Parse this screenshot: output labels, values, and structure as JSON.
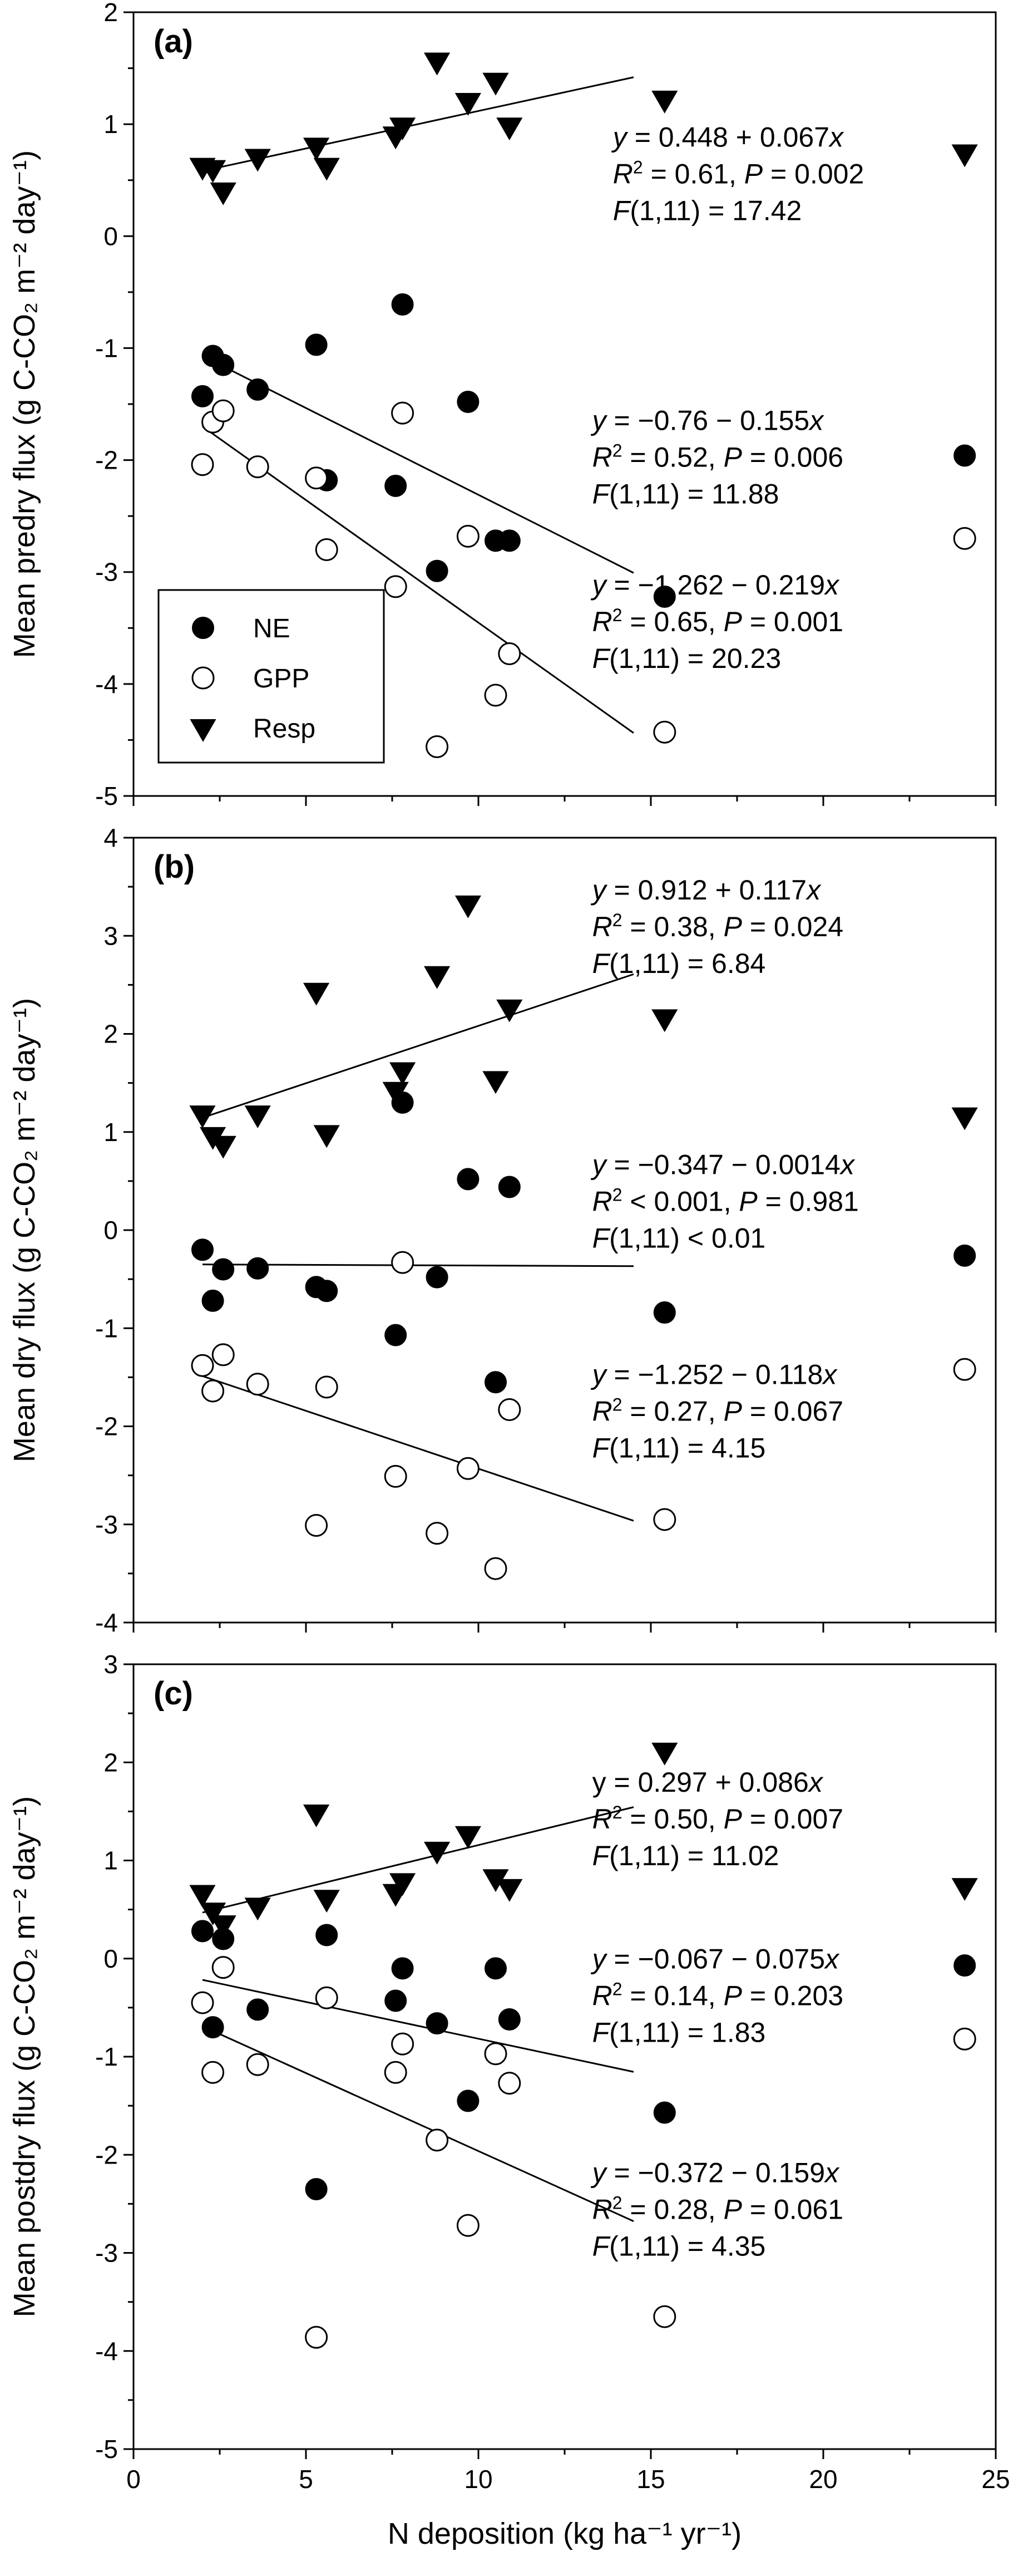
{
  "chart_data": [
    {
      "type": "scatter",
      "panel_label": "(a)",
      "ylabel": "Mean predry flux (g C-CO₂ m⁻² day⁻¹)",
      "xlim": [
        0,
        25
      ],
      "ylim": [
        -5,
        2
      ],
      "xticks": [
        0,
        5,
        10,
        15,
        20,
        25
      ],
      "yticks": [
        -5,
        -4,
        -3,
        -2,
        -1,
        0,
        1,
        2
      ],
      "grid": false,
      "legend": {
        "placement": "bottom-left",
        "entries": [
          {
            "label": "NE",
            "marker": "filled-circle"
          },
          {
            "label": "GPP",
            "marker": "open-circle"
          },
          {
            "label": "Resp",
            "marker": "filled-triangle-down"
          }
        ]
      },
      "series": [
        {
          "name": "NE",
          "marker": "filled-circle",
          "x": [
            2.0,
            2.3,
            2.6,
            3.6,
            5.3,
            5.6,
            7.6,
            7.8,
            8.8,
            9.7,
            10.5,
            10.9,
            15.4,
            24.1
          ],
          "y": [
            -1.43,
            -1.07,
            -1.15,
            -1.37,
            -0.97,
            -2.18,
            -2.23,
            -0.61,
            -2.99,
            -1.48,
            -2.72,
            -2.72,
            -3.22,
            -1.96
          ],
          "fit": {
            "x0": 2.0,
            "x1": 14.5,
            "intercept": -0.76,
            "slope": -0.155
          }
        },
        {
          "name": "GPP",
          "marker": "open-circle",
          "x": [
            2.0,
            2.3,
            2.6,
            3.6,
            5.3,
            5.6,
            7.6,
            7.8,
            8.8,
            9.7,
            10.5,
            10.9,
            15.4,
            24.1
          ],
          "y": [
            -2.04,
            -1.66,
            -1.56,
            -2.06,
            -2.16,
            -2.8,
            -3.13,
            -1.58,
            -4.56,
            -2.68,
            -4.1,
            -3.73,
            -4.43,
            -2.7
          ],
          "fit": {
            "x0": 2.0,
            "x1": 14.5,
            "intercept": -1.262,
            "slope": -0.219
          }
        },
        {
          "name": "Resp",
          "marker": "filled-triangle-down",
          "x": [
            2.0,
            2.3,
            2.6,
            3.6,
            5.3,
            5.6,
            7.6,
            7.8,
            8.8,
            9.7,
            10.5,
            10.9,
            15.4,
            24.1
          ],
          "y": [
            0.62,
            0.6,
            0.4,
            0.7,
            0.8,
            0.62,
            0.9,
            0.98,
            1.56,
            1.2,
            1.38,
            0.98,
            1.22,
            0.74
          ],
          "fit": {
            "x0": 2.0,
            "x1": 14.5,
            "intercept": 0.448,
            "slope": 0.067
          }
        }
      ],
      "annotations": [
        {
          "line1_var": "y",
          "line1_rest": " = 0.448 + 0.067",
          "line1_suffix": "x",
          "r2": " = 0.61, ",
          "p_label": "P",
          "p_value": " = 0.002",
          "f_label": "F",
          "f_value": "(1,11) = 17.42",
          "x": 13.9,
          "y": 0.8
        },
        {
          "line1_var": "y",
          "line1_rest": " = −0.76 − 0.155",
          "line1_suffix": "x",
          "r2": " = 0.52, ",
          "p_label": "P",
          "p_value": " = 0.006",
          "f_label": "F",
          "f_value": "(1,11) = 11.88",
          "x": 13.3,
          "y": -1.73
        },
        {
          "line1_var": "y",
          "line1_rest": " = −1.262 − 0.219",
          "line1_suffix": "x",
          "r2": " = 0.65, ",
          "p_label": "P",
          "p_value": " = 0.001",
          "f_label": "F",
          "f_value": "(1,11) = 20.23",
          "x": 13.3,
          "y": -3.2
        }
      ]
    },
    {
      "type": "scatter",
      "panel_label": "(b)",
      "ylabel": "Mean dry flux (g C-CO₂ m⁻² day⁻¹)",
      "xlim": [
        0,
        25
      ],
      "ylim": [
        -4,
        4
      ],
      "xticks": [
        0,
        5,
        10,
        15,
        20,
        25
      ],
      "yticks": [
        -4,
        -3,
        -2,
        -1,
        0,
        1,
        2,
        3,
        4
      ],
      "grid": false,
      "series": [
        {
          "name": "NE",
          "marker": "filled-circle",
          "x": [
            2.0,
            2.3,
            2.6,
            3.6,
            5.3,
            5.6,
            7.6,
            7.8,
            8.8,
            9.7,
            10.5,
            10.9,
            15.4,
            24.1
          ],
          "y": [
            -0.2,
            -0.72,
            -0.4,
            -0.39,
            -0.58,
            -0.62,
            -1.07,
            1.3,
            -0.48,
            0.52,
            -1.55,
            0.44,
            -0.84,
            -0.26
          ],
          "fit": {
            "x0": 2.0,
            "x1": 14.5,
            "intercept": -0.347,
            "slope": -0.0014
          }
        },
        {
          "name": "GPP",
          "marker": "open-circle",
          "x": [
            2.0,
            2.3,
            2.6,
            3.6,
            5.3,
            5.6,
            7.6,
            7.8,
            8.8,
            9.7,
            10.5,
            10.9,
            15.4,
            24.1
          ],
          "y": [
            -1.38,
            -1.64,
            -1.27,
            -1.57,
            -3.01,
            -1.6,
            -2.51,
            -0.33,
            -3.09,
            -2.43,
            -3.45,
            -1.83,
            -2.95,
            -1.42
          ],
          "fit": {
            "x0": 2.0,
            "x1": 14.5,
            "intercept": -1.252,
            "slope": -0.118
          }
        },
        {
          "name": "Resp",
          "marker": "filled-triangle-down",
          "x": [
            2.0,
            2.3,
            2.6,
            3.6,
            5.3,
            5.6,
            7.6,
            7.8,
            8.8,
            9.7,
            10.5,
            10.9,
            15.4,
            24.1
          ],
          "y": [
            1.18,
            0.96,
            0.87,
            1.18,
            2.43,
            0.98,
            1.42,
            1.62,
            2.6,
            3.32,
            1.53,
            2.26,
            2.16,
            1.16
          ],
          "fit": {
            "x0": 2.0,
            "x1": 14.5,
            "intercept": 0.912,
            "slope": 0.117
          }
        }
      ],
      "annotations": [
        {
          "line1_var": "y",
          "line1_rest": " = 0.912 + 0.117",
          "line1_suffix": "x",
          "r2": " = 0.38, ",
          "p_label": "P",
          "p_value": " = 0.024",
          "f_label": "F",
          "f_value": "(1,11) = 6.84",
          "x": 13.3,
          "y": 3.37
        },
        {
          "line1_var": "y",
          "line1_rest": " = −0.347 − 0.0014",
          "line1_suffix": "x",
          "r2": " < 0.001, ",
          "p_label": "P",
          "p_value": " = 0.981",
          "f_label": "F",
          "f_value": "(1,11) < 0.01",
          "x": 13.3,
          "y": 0.57
        },
        {
          "line1_var": "y",
          "line1_rest": " = −1.252 − 0.118",
          "line1_suffix": "x",
          "r2": " = 0.27, ",
          "p_label": "P",
          "p_value": " = 0.067",
          "f_label": "F",
          "f_value": "(1,11) = 4.15",
          "x": 13.3,
          "y": -1.57
        }
      ]
    },
    {
      "type": "scatter",
      "panel_label": "(c)",
      "ylabel": "Mean postdry flux (g C-CO₂ m⁻² day⁻¹)",
      "xlabel": "N deposition (kg ha⁻¹ yr⁻¹)",
      "xlim": [
        0,
        25
      ],
      "ylim": [
        -5,
        3
      ],
      "xticks": [
        0,
        5,
        10,
        15,
        20,
        25
      ],
      "yticks": [
        -5,
        -4,
        -3,
        -2,
        -1,
        0,
        1,
        2,
        3
      ],
      "grid": false,
      "series": [
        {
          "name": "NE",
          "marker": "filled-circle",
          "x": [
            2.0,
            2.3,
            2.6,
            3.6,
            5.3,
            5.6,
            7.6,
            7.8,
            8.8,
            9.7,
            10.5,
            10.9,
            15.4,
            24.1
          ],
          "y": [
            0.28,
            -0.7,
            0.2,
            -0.52,
            -2.35,
            0.24,
            -0.43,
            -0.1,
            -0.66,
            -1.45,
            -0.1,
            -0.62,
            -1.57,
            -0.07
          ],
          "fit": {
            "x0": 2.0,
            "x1": 14.5,
            "intercept": -0.067,
            "slope": -0.075
          }
        },
        {
          "name": "GPP",
          "marker": "open-circle",
          "x": [
            2.0,
            2.3,
            2.6,
            3.6,
            5.3,
            5.6,
            7.6,
            7.8,
            8.8,
            9.7,
            10.5,
            10.9,
            15.4,
            24.1
          ],
          "y": [
            -0.45,
            -1.16,
            -0.09,
            -1.08,
            -3.86,
            -0.4,
            -1.16,
            -0.87,
            -1.85,
            -2.72,
            -0.97,
            -1.27,
            -3.65,
            -0.82
          ],
          "fit": {
            "x0": 2.0,
            "x1": 14.5,
            "intercept": -0.372,
            "slope": -0.159
          }
        },
        {
          "name": "Resp",
          "marker": "filled-triangle-down",
          "x": [
            2.0,
            2.3,
            2.6,
            3.6,
            5.3,
            5.6,
            7.6,
            7.8,
            8.8,
            9.7,
            10.5,
            10.9,
            15.4,
            24.1
          ],
          "y": [
            0.66,
            0.48,
            0.35,
            0.53,
            1.48,
            0.61,
            0.67,
            0.78,
            1.1,
            1.26,
            0.82,
            0.72,
            2.11,
            0.73
          ],
          "fit": {
            "x0": 2.0,
            "x1": 14.5,
            "intercept": 0.297,
            "slope": 0.086
          }
        }
      ],
      "annotations": [
        {
          "line1_var": "",
          "line1_rest": "y = 0.297 + 0.086",
          "line1_suffix": "x",
          "r2": " = 0.50, ",
          "p_label": "P",
          "p_value": " = 0.007",
          "f_label": "F",
          "f_value": "(1,11) = 11.02",
          "x": 13.3,
          "y": 1.7
        },
        {
          "line1_var": "y",
          "line1_rest": " = −0.067 − 0.075",
          "line1_suffix": "x",
          "r2": " = 0.14, ",
          "p_label": "P",
          "p_value": " = 0.203",
          "f_label": "F",
          "f_value": "(1,11) = 1.83",
          "x": 13.3,
          "y": -0.1
        },
        {
          "line1_var": "y",
          "line1_rest": " = −0.372 − 0.159",
          "line1_suffix": "x",
          "r2": " = 0.28, ",
          "p_label": "P",
          "p_value": " = 0.061",
          "f_label": "F",
          "f_value": "(1,11) = 4.35",
          "x": 13.3,
          "y": -2.28
        }
      ]
    }
  ]
}
